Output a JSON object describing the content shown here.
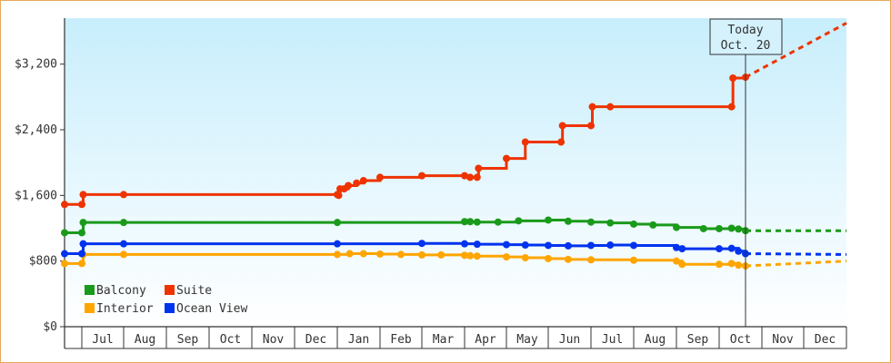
{
  "chart_data": {
    "type": "line",
    "title": "",
    "xlabel": "",
    "ylabel": "",
    "ylim": [
      0,
      3200
    ],
    "y_ticks": [
      0,
      800,
      1600,
      2400,
      3200
    ],
    "y_tick_labels": [
      "$0",
      "$800",
      "$1,600",
      "$2,400",
      "$3,200"
    ],
    "x_tick_labels": [
      "Jul",
      "Aug",
      "Sep",
      "Oct",
      "Nov",
      "Dec",
      "Jan",
      "Feb",
      "Mar",
      "Apr",
      "May",
      "Jun",
      "Jul",
      "Aug",
      "Sep",
      "Oct",
      "Nov",
      "Dec"
    ],
    "grid": false,
    "legend_position": "bottom-left",
    "today_label": "Today",
    "today_date": "Oct. 20",
    "series": [
      {
        "name": "Balcony",
        "color": "#1a9a1a",
        "points": [
          [
            "Jun 20",
            1145
          ],
          [
            "Jul 1",
            1145
          ],
          [
            "Jul 2",
            1270
          ],
          [
            "Aug 1",
            1270
          ],
          [
            "Jan 1",
            1270
          ],
          [
            "Apr 1",
            1280
          ],
          [
            "Apr 5",
            1280
          ],
          [
            "Apr 10",
            1275
          ],
          [
            "Apr 25",
            1275
          ],
          [
            "May 10",
            1290
          ],
          [
            "Jun 1",
            1300
          ],
          [
            "Jun 15",
            1285
          ],
          [
            "Jul 1",
            1275
          ],
          [
            "Jul 15",
            1265
          ],
          [
            "Aug 1",
            1250
          ],
          [
            "Aug 15",
            1240
          ],
          [
            "Sep 1",
            1210
          ],
          [
            "Sep 20",
            1195
          ],
          [
            "Oct 1",
            1195
          ],
          [
            "Oct 10",
            1200
          ],
          [
            "Oct 15",
            1190
          ],
          [
            "Oct 20",
            1170
          ]
        ],
        "forecast": [
          [
            "Oct 20",
            1170
          ],
          [
            "Dec 31",
            1170
          ]
        ]
      },
      {
        "name": "Suite",
        "color": "#ee3300",
        "points": [
          [
            "Jun 20",
            1490
          ],
          [
            "Jul 1",
            1490
          ],
          [
            "Jul 2",
            1610
          ],
          [
            "Aug 1",
            1610
          ],
          [
            "Jan 1",
            1610
          ],
          [
            "Jan 2",
            1600
          ],
          [
            "Jan 3",
            1680
          ],
          [
            "Jan 6",
            1680
          ],
          [
            "Jan 9",
            1720
          ],
          [
            "Jan 15",
            1750
          ],
          [
            "Jan 20",
            1780
          ],
          [
            "Feb 1",
            1820
          ],
          [
            "Mar 1",
            1840
          ],
          [
            "Apr 1",
            1840
          ],
          [
            "Apr 5",
            1820
          ],
          [
            "Apr 10",
            1820
          ],
          [
            "Apr 11",
            1930
          ],
          [
            "May 1",
            2050
          ],
          [
            "May 15",
            2250
          ],
          [
            "Jun 10",
            2250
          ],
          [
            "Jun 11",
            2450
          ],
          [
            "Jul 1",
            2450
          ],
          [
            "Jul 2",
            2680
          ],
          [
            "Jul 15",
            2680
          ],
          [
            "Oct 10",
            2680
          ],
          [
            "Oct 11",
            3030
          ],
          [
            "Oct 20",
            3040
          ]
        ],
        "forecast": [
          [
            "Oct 20",
            3040
          ],
          [
            "Dec 31",
            3700
          ]
        ]
      },
      {
        "name": "Interior",
        "color": "#ffa500",
        "points": [
          [
            "Jun 20",
            770
          ],
          [
            "Jul 1",
            770
          ],
          [
            "Jul 2",
            880
          ],
          [
            "Aug 1",
            880
          ],
          [
            "Jan 1",
            880
          ],
          [
            "Jan 10",
            890
          ],
          [
            "Jan 20",
            890
          ],
          [
            "Feb 1",
            885
          ],
          [
            "Feb 15",
            880
          ],
          [
            "Mar 1",
            875
          ],
          [
            "Mar 15",
            875
          ],
          [
            "Apr 1",
            870
          ],
          [
            "Apr 5",
            865
          ],
          [
            "Apr 10",
            860
          ],
          [
            "May 1",
            850
          ],
          [
            "May 15",
            840
          ],
          [
            "Jun 1",
            830
          ],
          [
            "Jun 15",
            820
          ],
          [
            "Jul 1",
            815
          ],
          [
            "Aug 1",
            810
          ],
          [
            "Sep 1",
            800
          ],
          [
            "Sep 5",
            760
          ],
          [
            "Oct 1",
            760
          ],
          [
            "Oct 10",
            770
          ],
          [
            "Oct 15",
            750
          ],
          [
            "Oct 20",
            740
          ]
        ],
        "forecast": [
          [
            "Oct 20",
            740
          ],
          [
            "Dec 31",
            800
          ]
        ]
      },
      {
        "name": "Ocean View",
        "color": "#0033ee",
        "points": [
          [
            "Jun 20",
            890
          ],
          [
            "Jul 1",
            890
          ],
          [
            "Jul 2",
            1010
          ],
          [
            "Aug 1",
            1010
          ],
          [
            "Jan 1",
            1010
          ],
          [
            "Mar 1",
            1015
          ],
          [
            "Apr 1",
            1010
          ],
          [
            "Apr 10",
            1005
          ],
          [
            "May 1",
            1000
          ],
          [
            "May 15",
            995
          ],
          [
            "Jun 1",
            990
          ],
          [
            "Jun 15",
            985
          ],
          [
            "Jul 1",
            990
          ],
          [
            "Jul 15",
            995
          ],
          [
            "Aug 1",
            990
          ],
          [
            "Sep 1",
            965
          ],
          [
            "Sep 5",
            950
          ],
          [
            "Oct 1",
            950
          ],
          [
            "Oct 10",
            955
          ],
          [
            "Oct 15",
            920
          ],
          [
            "Oct 20",
            890
          ]
        ],
        "forecast": [
          [
            "Oct 20",
            890
          ],
          [
            "Dec 31",
            880
          ]
        ]
      }
    ]
  }
}
